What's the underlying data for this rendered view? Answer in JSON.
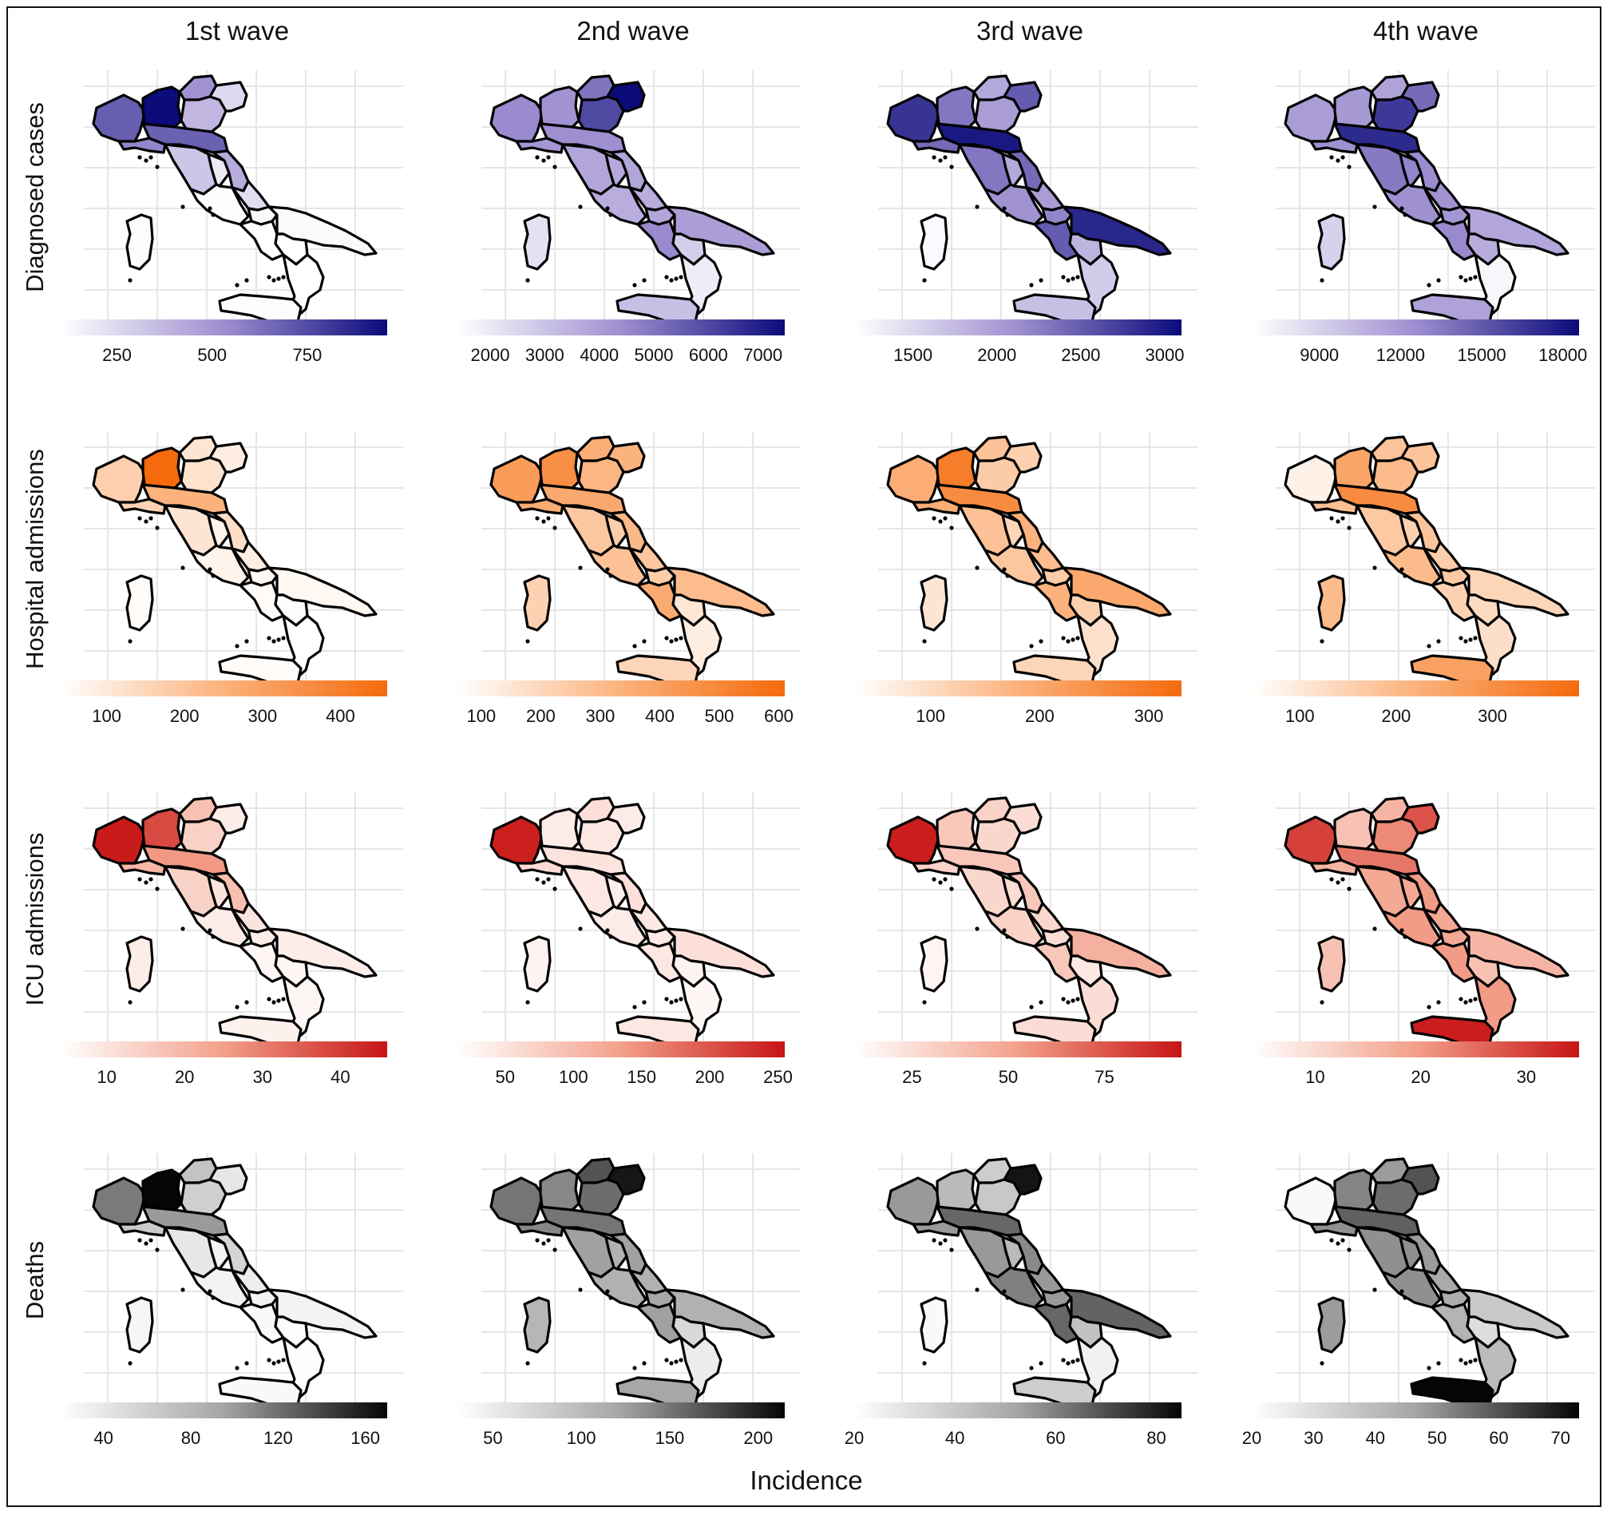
{
  "figure": {
    "xlabel": "Incidence",
    "columns": [
      "1st wave",
      "2nd wave",
      "3rd wave",
      "4th wave"
    ],
    "rows": [
      {
        "label": "Diagnosed cases",
        "palette": [
          "#ffffff",
          "#9e8fd0",
          "#0b0b7a"
        ]
      },
      {
        "label": "Hospital admissions",
        "palette": [
          "#ffffff",
          "#fbb27c",
          "#f46a0c"
        ]
      },
      {
        "label": "ICU admissions",
        "palette": [
          "#ffffff",
          "#f3a08a",
          "#c71414"
        ]
      },
      {
        "label": "Deaths",
        "palette": [
          "#ffffff",
          "#a5a5a5",
          "#050505"
        ]
      }
    ]
  },
  "chart_data": {
    "type": "choropleth",
    "regions": [
      "Valle d'Aosta/Piemonte",
      "Lombardia",
      "Trentino-Alto Adige",
      "Veneto",
      "Friuli-Venezia Giulia",
      "Liguria",
      "Emilia-Romagna",
      "Toscana",
      "Umbria",
      "Marche",
      "Lazio",
      "Abruzzo",
      "Molise",
      "Campania",
      "Puglia",
      "Basilicata",
      "Calabria",
      "Sicilia",
      "Sardegna"
    ],
    "panels": [
      {
        "row": "Diagnosed cases",
        "wave": "1st wave",
        "range": [
          100,
          960
        ],
        "ticks": [
          250,
          500,
          750
        ],
        "values": [
          690,
          960,
          520,
          380,
          250,
          560,
          680,
          320,
          180,
          420,
          110,
          230,
          120,
          100,
          120,
          100,
          100,
          110,
          110
        ]
      },
      {
        "row": "Diagnosed cases",
        "wave": "2nd wave",
        "range": [
          1400,
          7400
        ],
        "ticks": [
          2000,
          3000,
          4000,
          5000,
          6000,
          7000
        ],
        "values": [
          4500,
          4300,
          5000,
          6000,
          7400,
          4200,
          4400,
          3800,
          3700,
          3800,
          3600,
          3600,
          3800,
          4500,
          4000,
          2700,
          1900,
          3100,
          2200
        ]
      },
      {
        "row": "Diagnosed cases",
        "wave": "3rd wave",
        "range": [
          1150,
          3100
        ],
        "ticks": [
          1500,
          2000,
          2500,
          3000
        ],
        "values": [
          2800,
          2300,
          1900,
          2000,
          2500,
          2400,
          3000,
          2300,
          1900,
          2400,
          2100,
          2000,
          2200,
          2500,
          2900,
          1800,
          1600,
          1700,
          1200
        ]
      },
      {
        "row": "Diagnosed cases",
        "wave": "4th wave",
        "range": [
          6500,
          18600
        ],
        "ticks": [
          9000,
          12000,
          15000,
          18000
        ],
        "values": [
          11800,
          12000,
          11500,
          16500,
          14200,
          12500,
          17200,
          13500,
          13000,
          12700,
          12500,
          12300,
          12200,
          12800,
          11300,
          11000,
          7000,
          11500,
          9000
        ]
      },
      {
        "row": "Hospital admissions",
        "wave": "1st wave",
        "range": [
          40,
          460
        ],
        "ticks": [
          100,
          200,
          300,
          400
        ],
        "values": [
          170,
          460,
          110,
          120,
          90,
          160,
          250,
          110,
          70,
          130,
          70,
          90,
          60,
          50,
          60,
          45,
          40,
          50,
          50
        ]
      },
      {
        "row": "Hospital admissions",
        "wave": "2nd wave",
        "range": [
          60,
          610
        ],
        "ticks": [
          100,
          200,
          300,
          400,
          500,
          600
        ],
        "values": [
          420,
          470,
          350,
          320,
          330,
          360,
          370,
          260,
          240,
          310,
          280,
          260,
          240,
          360,
          300,
          150,
          120,
          210,
          220
        ]
      },
      {
        "row": "Hospital admissions",
        "wave": "3rd wave",
        "range": [
          30,
          330
        ],
        "ticks": [
          100,
          200,
          300
        ],
        "values": [
          190,
          290,
          150,
          130,
          120,
          190,
          260,
          150,
          110,
          180,
          140,
          160,
          130,
          180,
          200,
          120,
          90,
          110,
          80
        ]
      },
      {
        "row": "Hospital admissions",
        "wave": "4th wave",
        "range": [
          50,
          390
        ],
        "ticks": [
          100,
          200,
          300
        ],
        "values": [
          80,
          250,
          180,
          200,
          180,
          190,
          310,
          170,
          150,
          180,
          200,
          160,
          170,
          150,
          140,
          130,
          120,
          260,
          200
        ]
      },
      {
        "row": "ICU admissions",
        "wave": "1st wave",
        "range": [
          4,
          46
        ],
        "ticks": [
          10,
          20,
          30,
          40
        ],
        "values": [
          45,
          38,
          18,
          14,
          8,
          20,
          26,
          14,
          10,
          18,
          8,
          10,
          8,
          6,
          8,
          6,
          6,
          7,
          8
        ]
      },
      {
        "row": "ICU admissions",
        "wave": "2nd wave",
        "range": [
          15,
          255
        ],
        "ticks": [
          50,
          100,
          150,
          200,
          250
        ],
        "values": [
          245,
          40,
          55,
          45,
          40,
          60,
          50,
          45,
          35,
          55,
          40,
          45,
          40,
          45,
          55,
          30,
          25,
          45,
          30
        ]
      },
      {
        "row": "ICU admissions",
        "wave": "3rd wave",
        "range": [
          10,
          95
        ],
        "ticks": [
          25,
          50,
          75
        ],
        "values": [
          92,
          35,
          30,
          28,
          25,
          30,
          35,
          28,
          25,
          35,
          30,
          28,
          25,
          35,
          45,
          20,
          25,
          25,
          15
        ]
      },
      {
        "row": "ICU admissions",
        "wave": "4th wave",
        "range": [
          4,
          35
        ],
        "ticks": [
          10,
          20,
          30
        ],
        "values": [
          30,
          14,
          16,
          22,
          28,
          16,
          24,
          18,
          18,
          20,
          20,
          18,
          18,
          20,
          16,
          14,
          20,
          34,
          14
        ]
      },
      {
        "row": "Deaths",
        "wave": "1st wave",
        "range": [
          20,
          170
        ],
        "ticks": [
          40,
          80,
          120,
          160
        ],
        "values": [
          115,
          170,
          70,
          60,
          40,
          65,
          100,
          40,
          30,
          55,
          30,
          35,
          30,
          25,
          30,
          22,
          22,
          25,
          28
        ]
      },
      {
        "row": "Deaths",
        "wave": "2nd wave",
        "range": [
          30,
          215
        ],
        "ticks": [
          50,
          100,
          150,
          200
        ],
        "values": [
          150,
          140,
          170,
          155,
          205,
          140,
          150,
          125,
          110,
          125,
          110,
          110,
          120,
          125,
          110,
          70,
          50,
          120,
          105
        ]
      },
      {
        "row": "Deaths",
        "wave": "3rd wave",
        "range": [
          20,
          85
        ],
        "ticks": [
          20,
          40,
          60,
          80
        ],
        "values": [
          55,
          45,
          38,
          40,
          82,
          55,
          65,
          55,
          45,
          58,
          60,
          55,
          55,
          65,
          66,
          42,
          25,
          38,
          22
        ]
      },
      {
        "row": "Deaths",
        "wave": "4th wave",
        "range": [
          20,
          73
        ],
        "ticks": [
          20,
          30,
          40,
          50,
          60,
          70
        ],
        "values": [
          22,
          52,
          48,
          56,
          60,
          50,
          58,
          50,
          50,
          48,
          50,
          45,
          44,
          42,
          36,
          30,
          40,
          73,
          48
        ]
      }
    ]
  }
}
